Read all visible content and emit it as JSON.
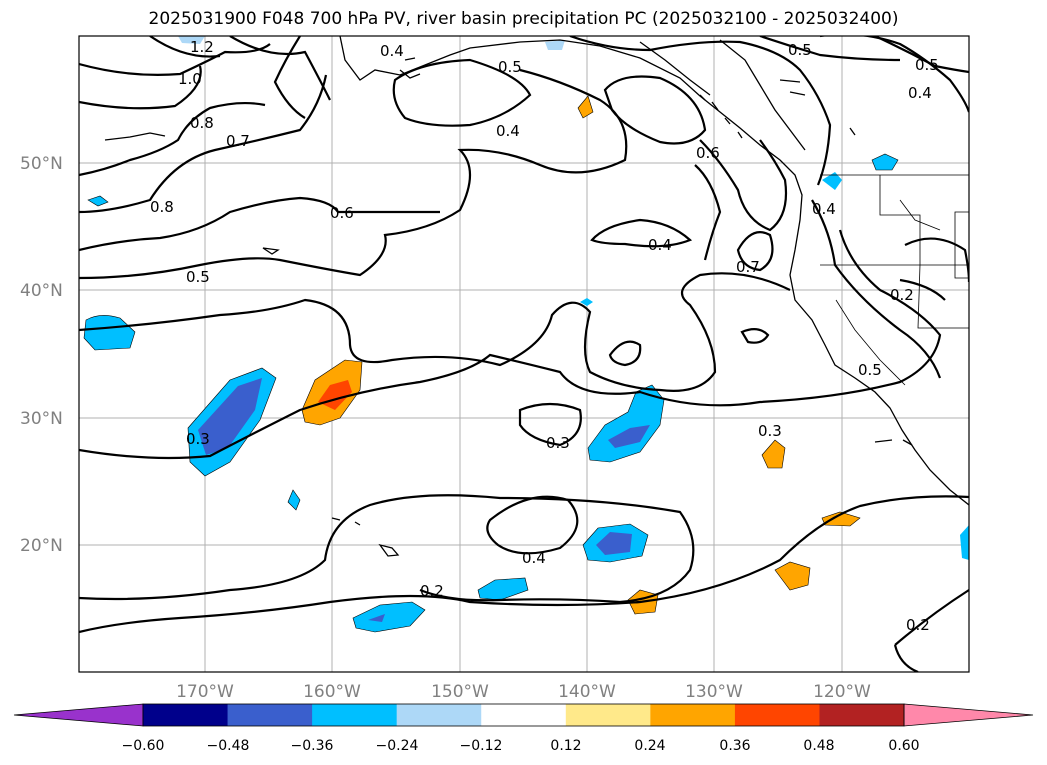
{
  "title": "2025031900 F048 700 hPa PV, river basin precipitation PC (2025032100 - 2025032400)",
  "map": {
    "lon_range": [
      -180,
      -110
    ],
    "lat_range": [
      10,
      60
    ],
    "lat_labels": [
      "50°N",
      "40°N",
      "30°N",
      "20°N"
    ],
    "lon_labels": [
      "170°W",
      "160°W",
      "150°W",
      "140°W",
      "130°W",
      "120°W"
    ],
    "contour_labels": [
      "1.2",
      "1.0",
      "0.8",
      "0.7",
      "0.8",
      "0.6",
      "0.5",
      "0.5",
      "0.4",
      "0.4",
      "0.6",
      "0.7",
      "0.4",
      "0.5",
      "0.5",
      "0.4",
      "0.2",
      "0.5",
      "0.3",
      "0.3",
      "0.3",
      "0.4",
      "0.2",
      "0.2",
      "0.4"
    ]
  },
  "colorbar": {
    "ticks": [
      "−0.60",
      "−0.48",
      "−0.36",
      "−0.24",
      "−0.12",
      "0.12",
      "0.24",
      "0.36",
      "0.48",
      "0.60"
    ],
    "colors": [
      "#9932cc",
      "#00008b",
      "#3a5fcd",
      "#00bfff",
      "#add8f7",
      "#ffffff",
      "#ffe98a",
      "#ffa500",
      "#ff4500",
      "#b22222",
      "#ff88aa"
    ]
  }
}
